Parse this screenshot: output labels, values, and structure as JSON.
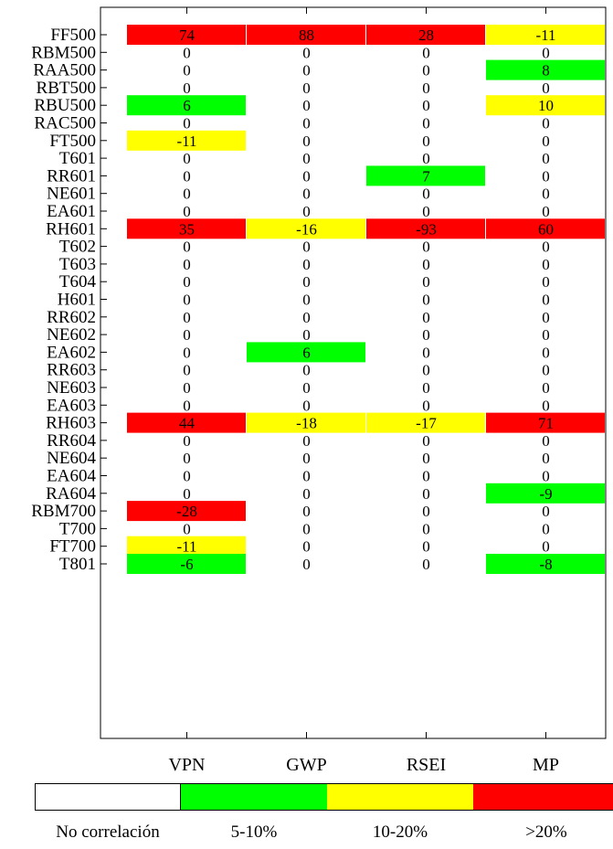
{
  "chart_data": {
    "type": "heatmap",
    "columns": [
      "VPN",
      "GWP",
      "RSEI",
      "MP"
    ],
    "rows": [
      "FF500",
      "RBM500",
      "RAA500",
      "RBT500",
      "RBU500",
      "RAC500",
      "FT500",
      "T601",
      "RR601",
      "NE601",
      "EA601",
      "RH601",
      "T602",
      "T603",
      "T604",
      "H601",
      "RR602",
      "NE602",
      "EA602",
      "RR603",
      "NE603",
      "EA603",
      "RH603",
      "RR604",
      "NE604",
      "EA604",
      "RA604",
      "RBM700",
      "T700",
      "FT700",
      "T801"
    ],
    "values": [
      [
        74,
        88,
        28,
        -11
      ],
      [
        0,
        0,
        0,
        0
      ],
      [
        0,
        0,
        0,
        8
      ],
      [
        0,
        0,
        0,
        0
      ],
      [
        6,
        0,
        0,
        10
      ],
      [
        0,
        0,
        0,
        0
      ],
      [
        -11,
        0,
        0,
        0
      ],
      [
        0,
        0,
        0,
        0
      ],
      [
        0,
        0,
        7,
        0
      ],
      [
        0,
        0,
        0,
        0
      ],
      [
        0,
        0,
        0,
        0
      ],
      [
        35,
        -16,
        -93,
        60
      ],
      [
        0,
        0,
        0,
        0
      ],
      [
        0,
        0,
        0,
        0
      ],
      [
        0,
        0,
        0,
        0
      ],
      [
        0,
        0,
        0,
        0
      ],
      [
        0,
        0,
        0,
        0
      ],
      [
        0,
        0,
        0,
        0
      ],
      [
        0,
        6,
        0,
        0
      ],
      [
        0,
        0,
        0,
        0
      ],
      [
        0,
        0,
        0,
        0
      ],
      [
        0,
        0,
        0,
        0
      ],
      [
        44,
        -18,
        -17,
        71
      ],
      [
        0,
        0,
        0,
        0
      ],
      [
        0,
        0,
        0,
        0
      ],
      [
        0,
        0,
        0,
        0
      ],
      [
        0,
        0,
        0,
        -9
      ],
      [
        -28,
        0,
        0,
        0
      ],
      [
        0,
        0,
        0,
        0
      ],
      [
        -11,
        0,
        0,
        0
      ],
      [
        -6,
        0,
        0,
        -8
      ]
    ],
    "color_scale": [
      {
        "label": "No correlación",
        "color": "#ffffff"
      },
      {
        "label": "5-10%",
        "color": "#00ff00"
      },
      {
        "label": "10-20%",
        "color": "#ffff00"
      },
      {
        "label": ">20%",
        "color": "#ff0000"
      }
    ],
    "grid": false,
    "legend_position": "bottom"
  }
}
